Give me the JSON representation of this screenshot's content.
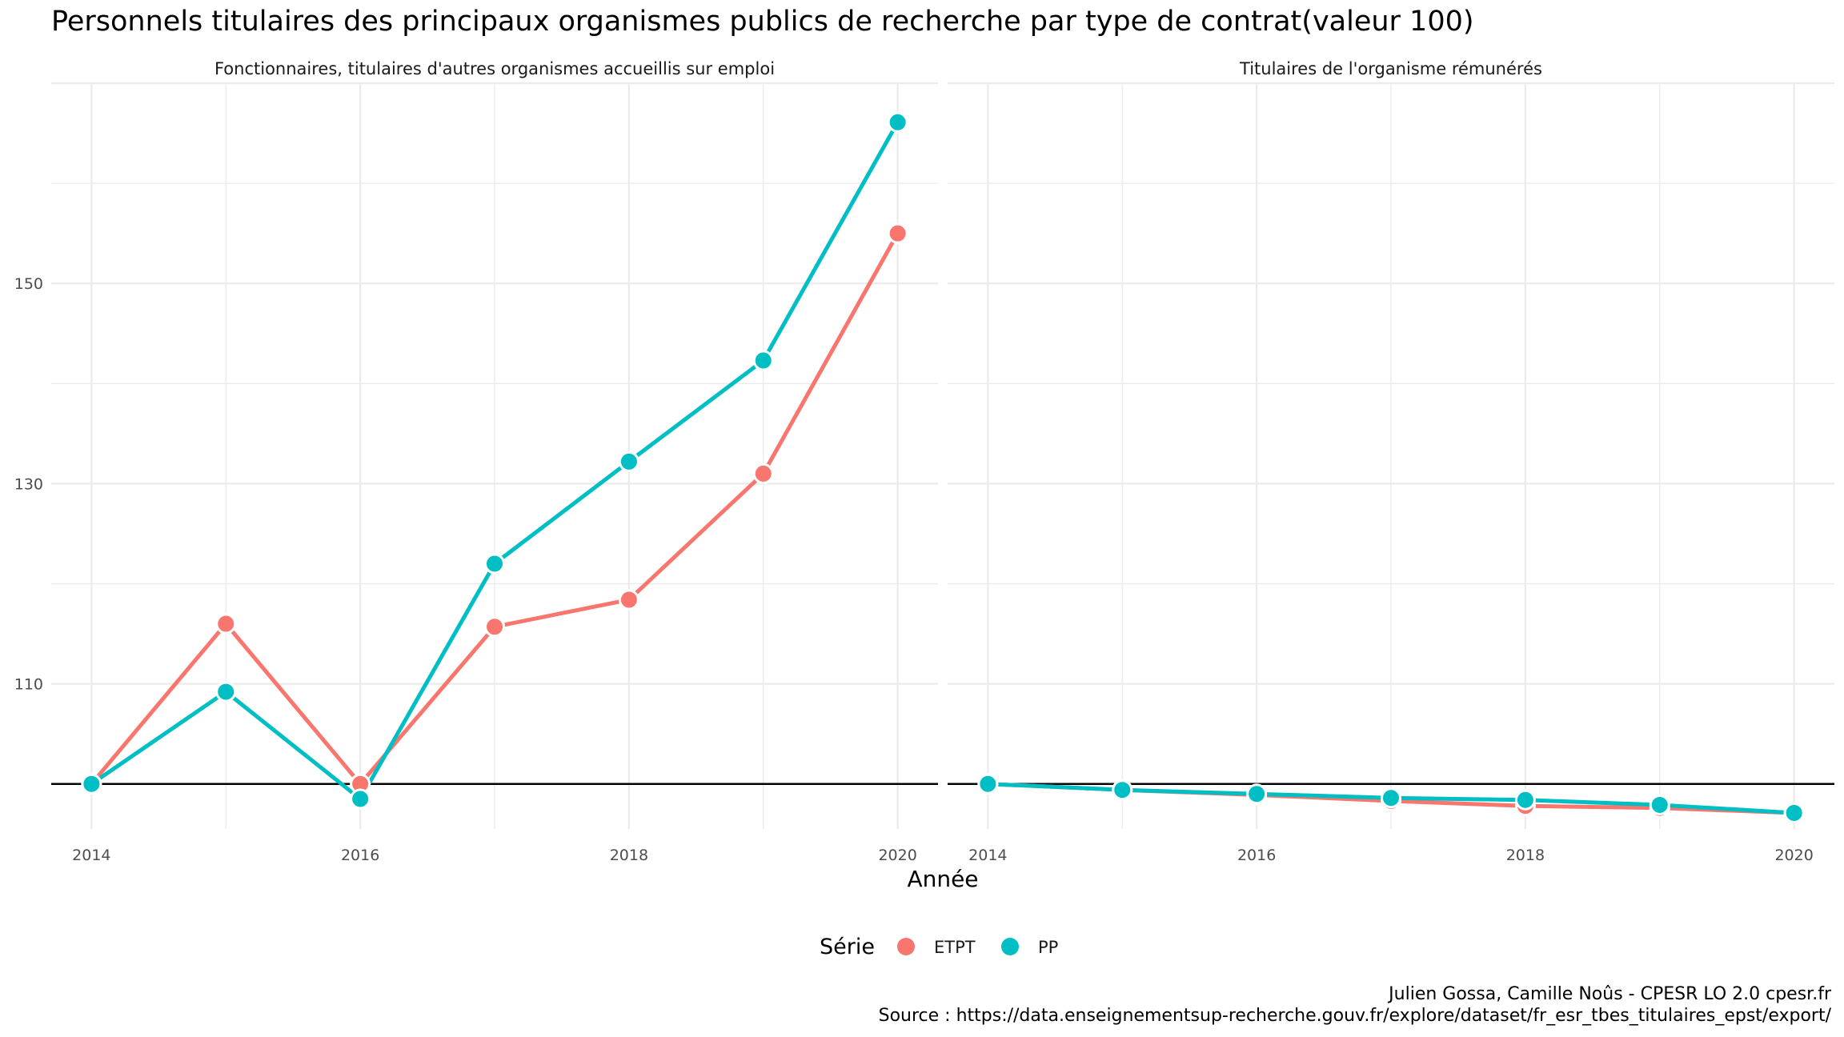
{
  "chart_data": {
    "type": "line",
    "title": "Personnels titulaires des principaux organismes publics de recherche par type de contrat(valeur 100)",
    "xlabel": "Année",
    "ylabel": "",
    "reference_line": 100,
    "ylim": [
      95.5,
      170
    ],
    "xlim": [
      2013.7,
      2020.3
    ],
    "x_ticks": [
      "2014",
      "2016",
      "2018",
      "2020"
    ],
    "y_ticks": [
      110,
      130,
      150
    ],
    "grid": true,
    "legend": {
      "title": "Série",
      "position": "bottom",
      "entries": [
        {
          "label": "ETPT",
          "color": "#F8766D"
        },
        {
          "label": "PP",
          "color": "#00BFC4"
        }
      ]
    },
    "facets": [
      {
        "title": "Fonctionnaires, titulaires d'autres organismes accueillis sur emploi",
        "x": [
          2014,
          2015,
          2016,
          2017,
          2018,
          2019,
          2020
        ],
        "series": [
          {
            "name": "ETPT",
            "color": "#F8766D",
            "values": [
              100,
              116,
              100,
              115.7,
              118.4,
              131,
              155
            ]
          },
          {
            "name": "PP",
            "color": "#00BFC4",
            "values": [
              100,
              109.2,
              98.5,
              122,
              132.2,
              142.3,
              166.1
            ]
          }
        ]
      },
      {
        "title": "Titulaires de l'organisme rémunérés",
        "x": [
          2014,
          2015,
          2016,
          2017,
          2018,
          2019,
          2020
        ],
        "series": [
          {
            "name": "ETPT",
            "color": "#F8766D",
            "values": [
              100,
              99.4,
              98.9,
              98.3,
              97.8,
              97.6,
              97.1
            ]
          },
          {
            "name": "PP",
            "color": "#00BFC4",
            "values": [
              100,
              99.4,
              99,
              98.6,
              98.4,
              97.9,
              97.1
            ]
          }
        ]
      }
    ]
  },
  "caption": {
    "line1": "Julien Gossa, Camille Noûs - CPESR LO 2.0 cpesr.fr",
    "line2": "Source : https://data.enseignementsup-recherche.gouv.fr/explore/dataset/fr_esr_tbes_titulaires_epst/export/"
  }
}
